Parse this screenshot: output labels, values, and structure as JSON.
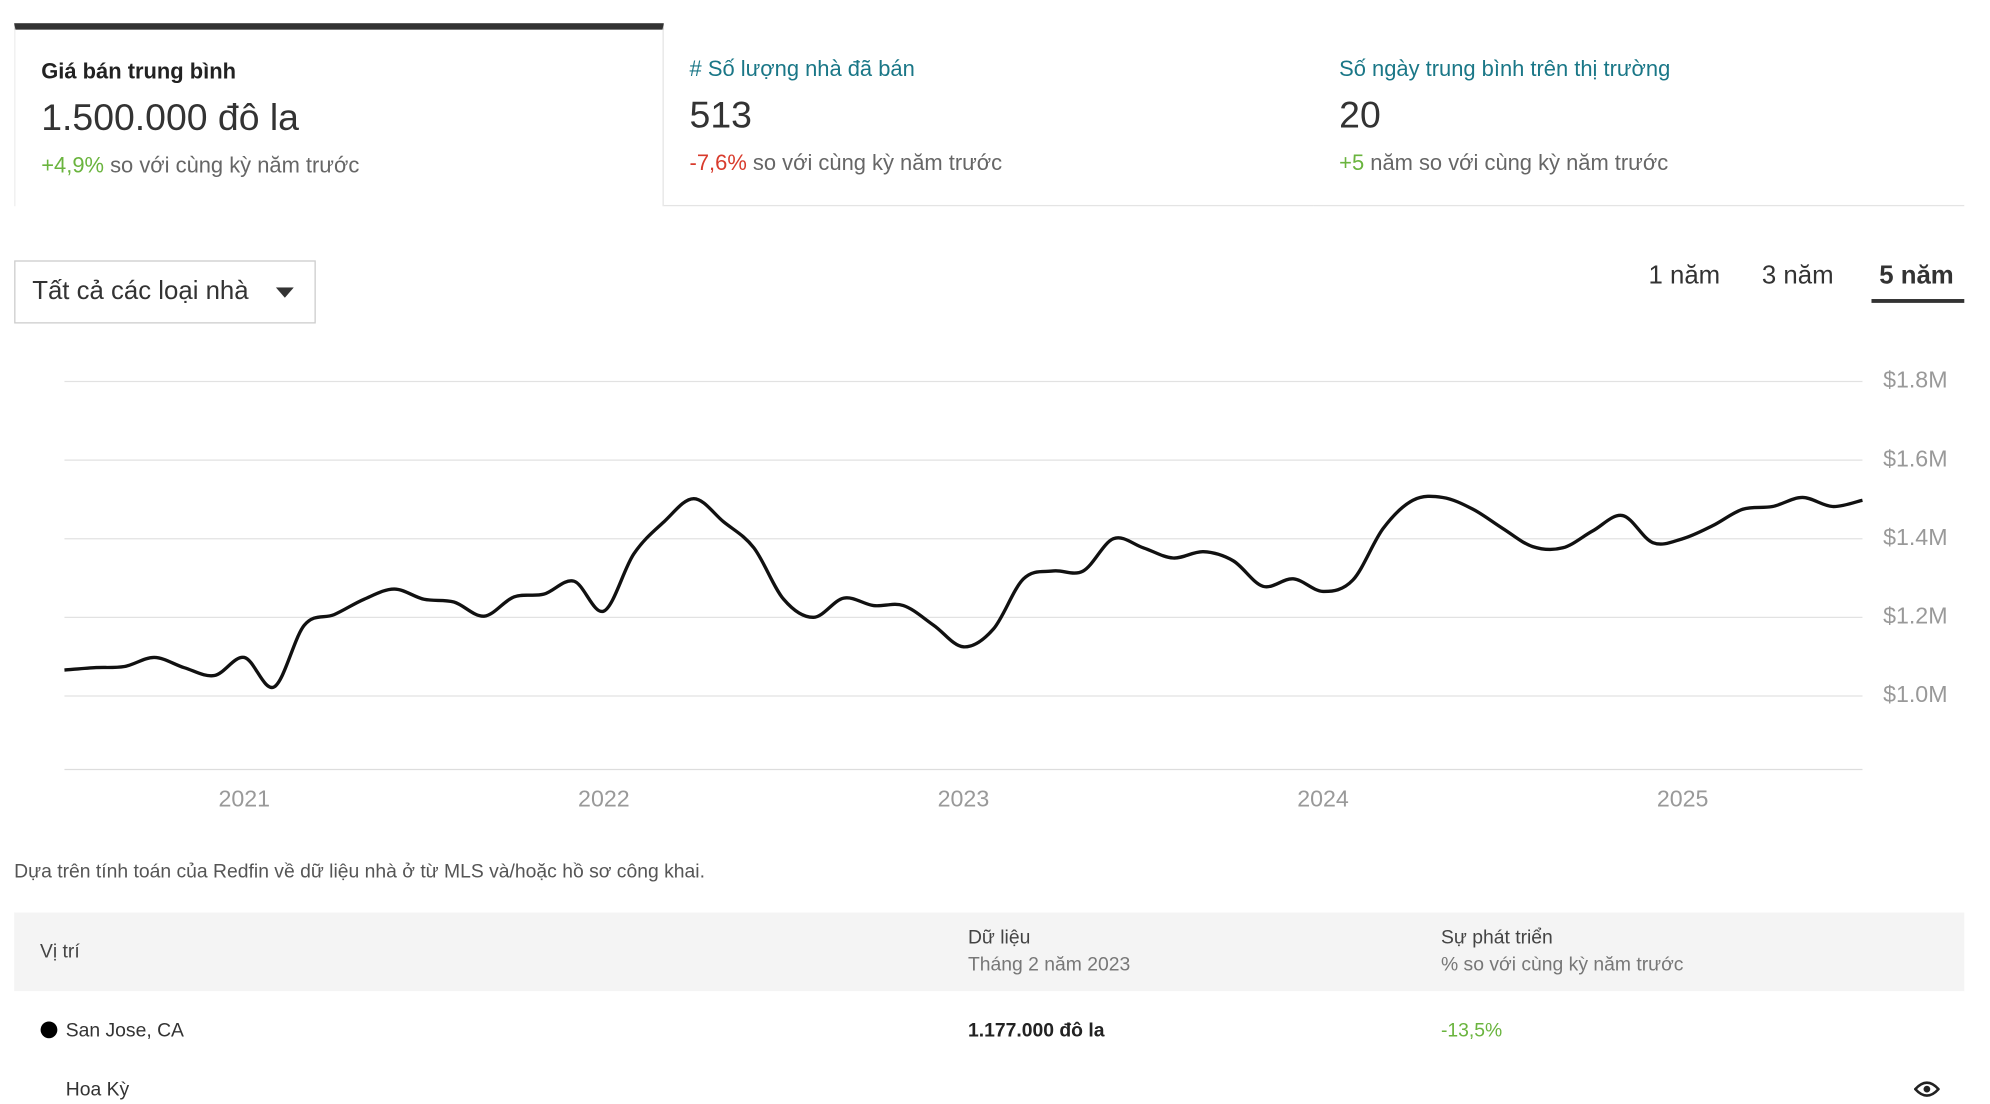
{
  "stats": [
    {
      "label": "Giá bán trung bình",
      "value": "1.500.000 đô la",
      "change": "+4,9%",
      "change_text": "so với cùng kỳ năm trước"
    },
    {
      "label": "# Số lượng nhà đã bán",
      "value": "513",
      "change": "-7,6%",
      "change_text": "so với cùng kỳ năm trước"
    },
    {
      "label": "Số ngày trung bình trên thị trường",
      "value": "20",
      "change": "+5",
      "change_text": "năm so với cùng kỳ năm trước"
    }
  ],
  "filter": "Tất cả các loại nhà",
  "ranges": [
    "1 năm",
    "3 năm",
    "5 năm"
  ],
  "chart_data": {
    "type": "line",
    "x": [
      2020.5,
      2020.583,
      2020.667,
      2020.75,
      2020.833,
      2020.917,
      2021,
      2021.083,
      2021.167,
      2021.25,
      2021.333,
      2021.417,
      2021.5,
      2021.583,
      2021.667,
      2021.75,
      2021.833,
      2021.917,
      2022,
      2022.083,
      2022.167,
      2022.25,
      2022.333,
      2022.417,
      2022.5,
      2022.583,
      2022.667,
      2022.75,
      2022.833,
      2022.917,
      2023,
      2023.083,
      2023.167,
      2023.25,
      2023.333,
      2023.417,
      2023.5,
      2023.583,
      2023.667,
      2023.75,
      2023.833,
      2023.917,
      2024,
      2024.083,
      2024.167,
      2024.25,
      2024.333,
      2024.417,
      2024.5,
      2024.583,
      2024.667,
      2024.75,
      2024.833,
      2024.917,
      2025,
      2025.083,
      2025.167,
      2025.25,
      2025.333,
      2025.417,
      2025.5
    ],
    "values": [
      1066000,
      1072000,
      1075000,
      1098000,
      1072000,
      1052000,
      1098000,
      1023000,
      1180000,
      1207000,
      1246000,
      1272000,
      1246000,
      1239000,
      1203000,
      1252000,
      1259000,
      1292000,
      1216000,
      1361000,
      1443000,
      1502000,
      1443000,
      1377000,
      1246000,
      1200000,
      1249000,
      1230000,
      1230000,
      1180000,
      1125000,
      1170000,
      1298000,
      1318000,
      1318000,
      1400000,
      1377000,
      1351000,
      1367000,
      1344000,
      1279000,
      1298000,
      1266000,
      1295000,
      1426000,
      1498000,
      1505000,
      1475000,
      1426000,
      1380000,
      1377000,
      1420000,
      1459000,
      1390000,
      1400000,
      1433000,
      1475000,
      1482000,
      1505000,
      1482000,
      1498000
    ],
    "color": "#111111",
    "xlim": [
      2020.5,
      2025.5
    ],
    "xticks": [
      2021,
      2022,
      2023,
      2024,
      2025
    ],
    "ylim": [
      813000,
      1800000
    ],
    "yticks": [
      {
        "value": 1000000,
        "label": "$1.0M"
      },
      {
        "value": 1200000,
        "label": "$1.2M"
      },
      {
        "value": 1400000,
        "label": "$1.4M"
      },
      {
        "value": 1600000,
        "label": "$1.6M"
      },
      {
        "value": 1800000,
        "label": "$1.8M"
      }
    ],
    "grid": true
  },
  "note": "Dựa trên tính toán của Redfin về dữ liệu nhà ở từ MLS và/hoặc hồ sơ công khai.",
  "table": {
    "header": {
      "location": "Vị trí",
      "data": "Dữ liệu",
      "data_sub": "Tháng 2 năm 2023",
      "growth": "Sự phát triển",
      "growth_sub": "% so với cùng kỳ năm trước"
    },
    "rows": [
      {
        "location": "San Jose, CA",
        "data": "1.177.000 đô la",
        "growth": "-13,5%"
      },
      {
        "location": "Hoa Kỳ"
      }
    ]
  }
}
